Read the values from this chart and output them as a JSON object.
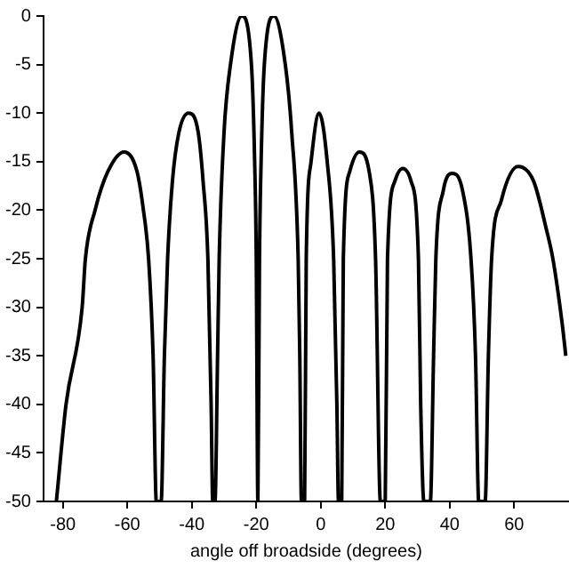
{
  "chart_data": {
    "type": "line",
    "xlabel": "angle off broadside (degrees)",
    "x": [
      -82,
      -79,
      -74,
      -73,
      -70,
      -66,
      -61,
      -57,
      -55,
      -53.4,
      -52,
      -51,
      -49.5,
      -48.5,
      -47.5,
      -46,
      -44,
      -41,
      -38,
      -36.5,
      -35,
      -34,
      -33.5,
      -32.8,
      -32,
      -31.5,
      -30,
      -28,
      -24.5,
      -21.5,
      -20.5,
      -20,
      -19.5,
      -19,
      -18.5,
      -17.5,
      -14.5,
      -11,
      -9,
      -7,
      -6.5,
      -6,
      -5,
      -4.5,
      -3,
      -0.5,
      2,
      4,
      5,
      5.5,
      6.5,
      7,
      9,
      12,
      15,
      17,
      18.5,
      20,
      20.7,
      23,
      25.4,
      28,
      30.3,
      31,
      32,
      34,
      35,
      35.7,
      38,
      40.8,
      44,
      46.6,
      48,
      49,
      51,
      52,
      53,
      56,
      61.2,
      66,
      70,
      72,
      75,
      76
    ],
    "series": [
      {
        "color": "#000000",
        "values": [
          -50,
          -40,
          -30,
          -25,
          -20,
          -16,
          -14,
          -16,
          -20,
          -25,
          -35,
          -50,
          -50,
          -35,
          -25,
          -17,
          -12,
          -10,
          -12,
          -17,
          -25,
          -40,
          -50,
          -50,
          -35,
          -25,
          -12,
          -5,
          0,
          -5,
          -15,
          -25,
          -50,
          -25,
          -15,
          -5,
          0,
          -5,
          -12,
          -25,
          -35,
          -50,
          -50,
          -25,
          -15,
          -10,
          -15,
          -25,
          -40,
          -50,
          -50,
          -25,
          -16,
          -14,
          -16,
          -25,
          -50,
          -50,
          -25,
          -17,
          -15.7,
          -17,
          -25,
          -40,
          -50,
          -50,
          -35,
          -25,
          -18,
          -16.2,
          -18,
          -25,
          -35,
          -50,
          -50,
          -35,
          -25,
          -19,
          -15.5,
          -17,
          -22,
          -25,
          -32,
          -35
        ]
      }
    ],
    "xlim": [
      -86,
      77
    ],
    "xticks": [
      -80,
      -60,
      -40,
      -20,
      0,
      20,
      40,
      60
    ],
    "ylim": [
      -50,
      0
    ],
    "yticks": [
      0,
      -5,
      -10,
      -15,
      -20,
      -25,
      -30,
      -35,
      -40,
      -45,
      -50
    ],
    "grid": false,
    "legend": false,
    "marker": "none",
    "line_style": "solid"
  }
}
